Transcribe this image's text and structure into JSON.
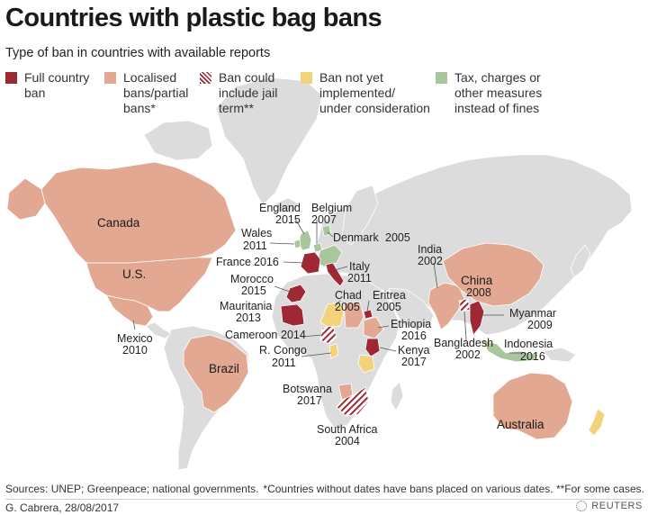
{
  "title": "Countries with plastic bag bans",
  "subtitle": "Type of ban in countries with available reports",
  "legend": [
    {
      "key": "full",
      "label": "Full country\nban",
      "color": "#9e2833"
    },
    {
      "key": "local",
      "label": "Localised\nbans/partial\nbans*",
      "color": "#e2a891"
    },
    {
      "key": "jail",
      "label": "Ban could\ninclude jail\nterm**",
      "color": "#9e2833"
    },
    {
      "key": "notyet",
      "label": "Ban not yet\nimplemented/\nunder consideration",
      "color": "#f2d37b"
    },
    {
      "key": "tax",
      "label": "Tax, charges or\nother measures\ninstead of fines",
      "color": "#a9c79d"
    }
  ],
  "map_colors": {
    "land": "#dcdcdc",
    "border": "#ffffff",
    "full": "#9e2833",
    "local": "#e2a891",
    "notyet": "#f2d37b",
    "tax": "#a9c79d"
  },
  "countries": {
    "canada": {
      "name": "Canada",
      "type": "local"
    },
    "us": {
      "name": "U.S.",
      "type": "local"
    },
    "mexico": {
      "name": "Mexico",
      "year": "2010",
      "type": "local"
    },
    "brazil": {
      "name": "Brazil",
      "type": "local"
    },
    "england": {
      "name": "England",
      "year": "2015",
      "type": "tax"
    },
    "wales": {
      "name": "Wales",
      "year": "2011",
      "type": "tax"
    },
    "france": {
      "name": "France",
      "year": "2016",
      "type": "full"
    },
    "belgium": {
      "name": "Belgium",
      "year": "2007",
      "type": "tax"
    },
    "denmark": {
      "name": "Denmark",
      "year": "2005",
      "type": "tax"
    },
    "italy": {
      "name": "Italy",
      "year": "2011",
      "type": "full"
    },
    "morocco": {
      "name": "Morocco",
      "year": "2015",
      "type": "full"
    },
    "mauritania": {
      "name": "Mauritania",
      "year": "2013",
      "type": "full"
    },
    "chad": {
      "name": "Chad",
      "year": "2005",
      "type": "notyet"
    },
    "eritrea": {
      "name": "Eritrea",
      "year": "2005",
      "type": "full"
    },
    "ethiopia": {
      "name": "Ethiopia",
      "year": "2016",
      "type": "local"
    },
    "kenya": {
      "name": "Kenya",
      "year": "2017",
      "type": "full"
    },
    "cameroon": {
      "name": "Cameroon",
      "year": "2014",
      "type": "jail"
    },
    "rcongo": {
      "name": "R. Congo",
      "year": "2011",
      "type": "notyet"
    },
    "botswana": {
      "name": "Botswana",
      "year": "2017",
      "type": "local"
    },
    "southafrica": {
      "name": "South Africa",
      "year": "2004",
      "type": "jail"
    },
    "india": {
      "name": "India",
      "year": "2002",
      "type": "local"
    },
    "china": {
      "name": "China",
      "year": "2008",
      "type": "local"
    },
    "myanmar": {
      "name": "Myanmar",
      "year": "2009",
      "type": "full"
    },
    "bangladesh": {
      "name": "Bangladesh",
      "year": "2002",
      "type": "jail"
    },
    "indonesia": {
      "name": "Indonesia",
      "year": "2016",
      "type": "tax"
    },
    "australia": {
      "name": "Australia",
      "type": "local"
    },
    "newzealand": {
      "type": "notyet"
    }
  },
  "footer": {
    "sources": "Sources: UNEP; Greenpeace; national governments.",
    "note": "*Countries without dates have bans placed on various dates. **For some cases.",
    "credit": "G. Cabrera,  28/08/2017",
    "brand": "REUTERS"
  }
}
